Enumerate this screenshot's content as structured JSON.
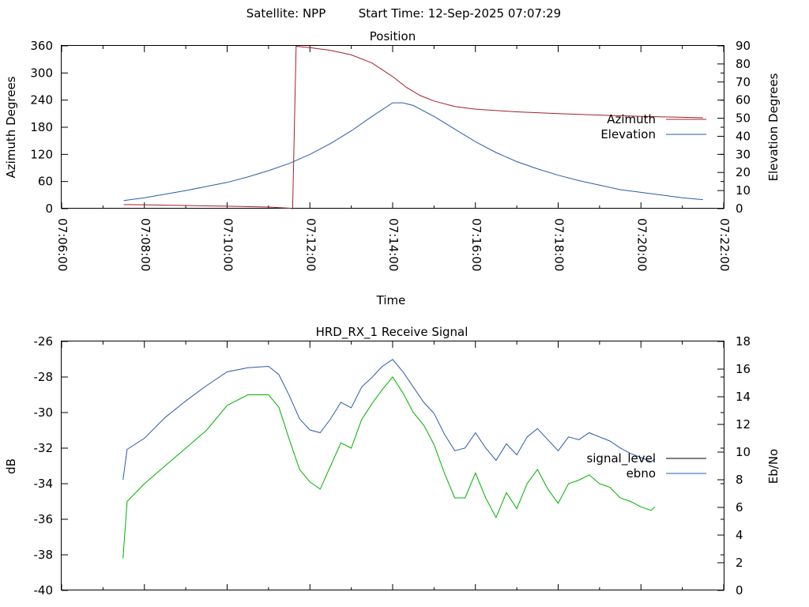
{
  "header": {
    "satellite": "Satellite: NPP",
    "start_time": "Start Time: 12-Sep-2025 07:07:29"
  },
  "colors": {
    "azimuth": "#a0202c",
    "elevation": "#2a5ca8",
    "signal_level": "#000000",
    "ebno": "#2a5ca8",
    "green_trace": "#00b000"
  },
  "chart_data": [
    {
      "type": "line",
      "title": "Position",
      "xlabel": "Time",
      "ylabel": "Azimuth Degrees",
      "y2label": "Elevation Degrees",
      "xlim": [
        "07:06:00",
        "07:22:00"
      ],
      "ylim": [
        0,
        360
      ],
      "y2lim": [
        0,
        90
      ],
      "x_ticks": [
        "07:06:00",
        "07:08:00",
        "07:10:00",
        "07:12:00",
        "07:14:00",
        "07:16:00",
        "07:18:00",
        "07:20:00",
        "07:22:00"
      ],
      "y_ticks": [
        "0",
        "60",
        "120",
        "180",
        "240",
        "300",
        "360"
      ],
      "y2_ticks": [
        "0",
        "10",
        "20",
        "30",
        "40",
        "50",
        "60",
        "70",
        "80",
        "90"
      ],
      "legend_position": "right",
      "grid": false,
      "series": [
        {
          "name": "Azimuth",
          "axis": "left",
          "x": [
            "07:07:30",
            "07:08:00",
            "07:09:00",
            "07:10:00",
            "07:11:00",
            "07:11:30",
            "07:11:35",
            "07:11:40",
            "07:12:00",
            "07:12:30",
            "07:13:00",
            "07:13:30",
            "07:14:00",
            "07:14:20",
            "07:14:40",
            "07:15:00",
            "07:15:30",
            "07:16:00",
            "07:17:00",
            "07:18:00",
            "07:19:00",
            "07:20:00",
            "07:21:00",
            "07:21:30"
          ],
          "y": [
            9,
            8.5,
            7,
            5.5,
            3.5,
            1,
            0,
            359,
            356,
            350,
            340,
            322,
            292,
            268,
            250,
            238,
            226,
            220,
            214,
            210,
            207,
            204,
            202,
            201
          ]
        },
        {
          "name": "Elevation",
          "axis": "right",
          "x": [
            "07:07:30",
            "07:08:00",
            "07:09:00",
            "07:10:00",
            "07:10:30",
            "07:11:00",
            "07:11:30",
            "07:12:00",
            "07:12:30",
            "07:13:00",
            "07:13:30",
            "07:14:00",
            "07:14:15",
            "07:14:30",
            "07:15:00",
            "07:15:30",
            "07:16:00",
            "07:16:30",
            "07:17:00",
            "07:17:30",
            "07:18:00",
            "07:18:30",
            "07:19:00",
            "07:19:30",
            "07:20:00",
            "07:20:30",
            "07:21:00",
            "07:21:30"
          ],
          "y": [
            4.5,
            6,
            10,
            14.5,
            17.5,
            21,
            25,
            30,
            36,
            43,
            51,
            58.5,
            58.5,
            57,
            51,
            44,
            37,
            31,
            26,
            22,
            18.5,
            15.5,
            13,
            10.5,
            9,
            7.5,
            6,
            5
          ]
        }
      ]
    },
    {
      "type": "line",
      "title": "HRD_RX_1 Receive Signal",
      "ylabel": "dB",
      "y2label": "Eb/No",
      "ylim": [
        -40,
        -26
      ],
      "y2lim": [
        0,
        18
      ],
      "y_ticks": [
        "-26",
        "-28",
        "-30",
        "-32",
        "-34",
        "-36",
        "-38",
        "-40"
      ],
      "y2_ticks": [
        "0",
        "2",
        "4",
        "6",
        "8",
        "10",
        "12",
        "14",
        "16",
        "18"
      ],
      "xlim": [
        "07:06:00",
        "07:22:00"
      ],
      "legend_position": "right",
      "grid": false,
      "series": [
        {
          "name": "signal_level",
          "axis": "left",
          "color": "#00b000",
          "x": [
            "07:07:29",
            "07:07:35",
            "07:08:00",
            "07:08:30",
            "07:09:00",
            "07:09:30",
            "07:10:00",
            "07:10:30",
            "07:11:00",
            "07:11:15",
            "07:11:30",
            "07:11:45",
            "07:12:00",
            "07:12:15",
            "07:12:30",
            "07:12:45",
            "07:13:00",
            "07:13:15",
            "07:13:30",
            "07:13:45",
            "07:14:00",
            "07:14:15",
            "07:14:30",
            "07:14:45",
            "07:15:00",
            "07:15:15",
            "07:15:30",
            "07:15:45",
            "07:16:00",
            "07:16:15",
            "07:16:30",
            "07:16:45",
            "07:17:00",
            "07:17:15",
            "07:17:30",
            "07:17:45",
            "07:18:00",
            "07:18:15",
            "07:18:30",
            "07:18:45",
            "07:19:00",
            "07:19:15",
            "07:19:30",
            "07:19:45",
            "07:20:00",
            "07:20:15",
            "07:20:20"
          ],
          "y": [
            -38.2,
            -35,
            -34,
            -33,
            -32,
            -31,
            -29.6,
            -29,
            -29,
            -29.7,
            -31.5,
            -33.2,
            -33.9,
            -34.3,
            -33,
            -31.7,
            -32,
            -30.4,
            -29.5,
            -28.7,
            -28,
            -28.9,
            -30,
            -30.7,
            -31.8,
            -33.4,
            -34.8,
            -34.8,
            -33.4,
            -34.8,
            -35.9,
            -34.5,
            -35.4,
            -34,
            -33.2,
            -34.3,
            -35.1,
            -34,
            -33.8,
            -33.5,
            -34,
            -34.2,
            -34.8,
            -35,
            -35.3,
            -35.5,
            -35.3
          ]
        },
        {
          "name": "ebno",
          "axis": "right",
          "x": [
            "07:07:29",
            "07:07:35",
            "07:08:00",
            "07:08:30",
            "07:09:00",
            "07:09:30",
            "07:10:00",
            "07:10:30",
            "07:11:00",
            "07:11:15",
            "07:11:30",
            "07:11:45",
            "07:12:00",
            "07:12:15",
            "07:12:30",
            "07:12:45",
            "07:13:00",
            "07:13:15",
            "07:13:30",
            "07:13:45",
            "07:14:00",
            "07:14:15",
            "07:14:30",
            "07:14:45",
            "07:15:00",
            "07:15:15",
            "07:15:30",
            "07:15:45",
            "07:16:00",
            "07:16:15",
            "07:16:30",
            "07:16:45",
            "07:17:00",
            "07:17:15",
            "07:17:30",
            "07:17:45",
            "07:18:00",
            "07:18:15",
            "07:18:30",
            "07:18:45",
            "07:19:00",
            "07:19:15",
            "07:19:30",
            "07:19:45",
            "07:20:00",
            "07:20:15",
            "07:20:20"
          ],
          "y": [
            8,
            10.2,
            11,
            12.5,
            13.7,
            14.8,
            15.8,
            16.1,
            16.2,
            15.6,
            14.1,
            12.4,
            11.6,
            11.4,
            12.4,
            13.6,
            13.2,
            14.7,
            15.4,
            16.2,
            16.7,
            15.8,
            14.7,
            13.6,
            12.8,
            11.3,
            10.1,
            10.3,
            11.4,
            10.3,
            9.4,
            10.6,
            9.8,
            11.1,
            11.7,
            10.9,
            10.1,
            11.1,
            10.9,
            11.4,
            11.1,
            10.8,
            10.3,
            9.9,
            9.6,
            9.3,
            9.5
          ]
        }
      ]
    }
  ]
}
